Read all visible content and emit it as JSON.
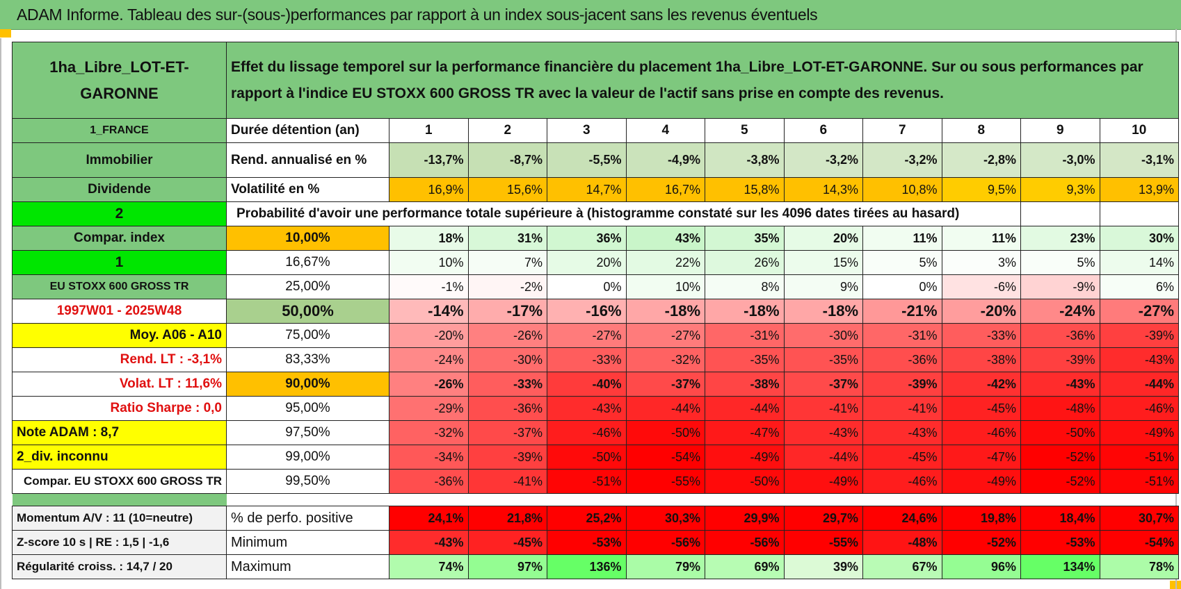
{
  "title": "ADAM Informe. Tableau des sur-(sous-)performances par rapport à un index sous-jacent sans les revenus éventuels",
  "product": "1ha_Libre_LOT-ET-GARONNE",
  "description": "Effet du lissage temporel sur la performance financière du placement 1ha_Libre_LOT-ET-GARONNE. Sur ou sous performances par rapport à l'indice EU STOXX 600 GROSS TR avec la valeur de l'actif sans prise en compte des revenus.",
  "left": {
    "country": "1_FRANCE",
    "category": "Immobilier",
    "dividend": "Dividende",
    "code2": "2",
    "compar_index": "Compar. index",
    "code1": "1",
    "index_name": "EU STOXX 600 GROSS TR",
    "period": "1997W01 - 2025W48",
    "moy": "Moy. A06 - A10",
    "rend_lt": "Rend. LT :    -3,1%",
    "volat_lt": "Volat. LT :    11,6%",
    "sharpe": "Ratio Sharpe :    0,0",
    "note": "Note ADAM : 8,7",
    "div": "2_div. inconnu",
    "compar_full": "Compar. EU STOXX 600 GROSS TR",
    "momentum": "Momentum A/V : 11 (10=neutre)",
    "zscore": "Z-score 10 s | RE : 1,5 | -1,6",
    "regularite": "Régularité croiss. : 14,7 / 20"
  },
  "labels": {
    "duree": "Durée détention (an)",
    "rend": "Rend. annualisé en %",
    "vol": "Volatilité en %",
    "prob_header": "Probabilité d'avoir une performance totale supérieure à (histogramme constaté sur les 4096 dates tirées au hasard)",
    "positive": "% de perfo. positive",
    "minimum": "Minimum",
    "maximum": "Maximum"
  },
  "years": [
    "1",
    "2",
    "3",
    "4",
    "5",
    "6",
    "7",
    "8",
    "9",
    "10"
  ],
  "rend": [
    "-13,7%",
    "-8,7%",
    "-5,5%",
    "-4,9%",
    "-3,8%",
    "-3,2%",
    "-3,2%",
    "-2,8%",
    "-3,0%",
    "-3,1%"
  ],
  "vol": [
    "16,9%",
    "15,6%",
    "14,7%",
    "16,7%",
    "15,8%",
    "14,3%",
    "10,8%",
    "9,5%",
    "9,3%",
    "13,9%"
  ],
  "quantiles": [
    {
      "level": "10,00%",
      "values": [
        "18%",
        "31%",
        "36%",
        "43%",
        "35%",
        "20%",
        "11%",
        "11%",
        "23%",
        "30%"
      ]
    },
    {
      "level": "16,67%",
      "values": [
        "10%",
        "7%",
        "20%",
        "22%",
        "26%",
        "15%",
        "5%",
        "3%",
        "5%",
        "14%"
      ]
    },
    {
      "level": "25,00%",
      "values": [
        "-1%",
        "-2%",
        "0%",
        "10%",
        "8%",
        "9%",
        "0%",
        "-6%",
        "-9%",
        "6%"
      ]
    },
    {
      "level": "50,00%",
      "values": [
        "-14%",
        "-17%",
        "-16%",
        "-18%",
        "-18%",
        "-18%",
        "-21%",
        "-20%",
        "-24%",
        "-27%"
      ]
    },
    {
      "level": "75,00%",
      "values": [
        "-20%",
        "-26%",
        "-27%",
        "-27%",
        "-31%",
        "-30%",
        "-31%",
        "-33%",
        "-36%",
        "-39%"
      ]
    },
    {
      "level": "83,33%",
      "values": [
        "-24%",
        "-30%",
        "-33%",
        "-32%",
        "-35%",
        "-35%",
        "-36%",
        "-38%",
        "-39%",
        "-43%"
      ]
    },
    {
      "level": "90,00%",
      "values": [
        "-26%",
        "-33%",
        "-40%",
        "-37%",
        "-38%",
        "-37%",
        "-39%",
        "-42%",
        "-43%",
        "-44%"
      ]
    },
    {
      "level": "95,00%",
      "values": [
        "-29%",
        "-36%",
        "-43%",
        "-44%",
        "-44%",
        "-41%",
        "-41%",
        "-45%",
        "-48%",
        "-46%"
      ]
    },
    {
      "level": "97,50%",
      "values": [
        "-32%",
        "-37%",
        "-46%",
        "-50%",
        "-47%",
        "-43%",
        "-43%",
        "-46%",
        "-50%",
        "-49%"
      ]
    },
    {
      "level": "99,00%",
      "values": [
        "-34%",
        "-39%",
        "-50%",
        "-54%",
        "-49%",
        "-44%",
        "-45%",
        "-47%",
        "-52%",
        "-51%"
      ]
    },
    {
      "level": "99,50%",
      "values": [
        "-36%",
        "-41%",
        "-51%",
        "-55%",
        "-50%",
        "-49%",
        "-46%",
        "-49%",
        "-52%",
        "-51%"
      ]
    }
  ],
  "positive": [
    "24,1%",
    "21,8%",
    "25,2%",
    "30,3%",
    "29,9%",
    "29,7%",
    "24,6%",
    "19,8%",
    "18,4%",
    "30,7%"
  ],
  "minimum": [
    "-43%",
    "-45%",
    "-53%",
    "-56%",
    "-56%",
    "-55%",
    "-48%",
    "-52%",
    "-53%",
    "-54%"
  ],
  "maximum": [
    "74%",
    "97%",
    "136%",
    "79%",
    "69%",
    "39%",
    "67%",
    "96%",
    "134%",
    "78%"
  ],
  "colors": {
    "header_green": "#7ec87e",
    "bright_green": "#00e600",
    "yellow": "#ffff00",
    "orange": "#ffc000",
    "red": "#ff0000"
  }
}
